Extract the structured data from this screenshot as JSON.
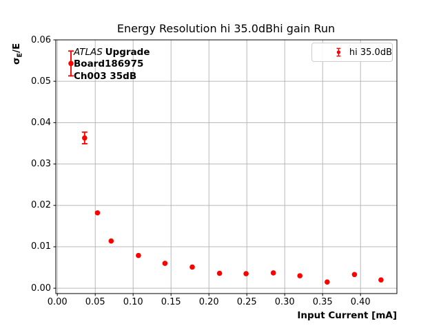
{
  "title": "Energy Resolution hi 35.0dBhi gain Run",
  "axes": {
    "xlabel": "Input Current [mA]",
    "ylabel_sigma": "σ",
    "ylabel_sub": "E",
    "ylabel_rest": "/E",
    "x_tick_labels": [
      "0.00",
      "0.05",
      "0.10",
      "0.15",
      "0.20",
      "0.25",
      "0.30",
      "0.35",
      "0.40"
    ],
    "y_tick_labels": [
      "0.00",
      "0.01",
      "0.02",
      "0.03",
      "0.04",
      "0.05",
      "0.06"
    ]
  },
  "annotation": {
    "line1_italic": "ATLAS",
    "line1_bold": "Upgrade",
    "line2": "Board186975",
    "line3": "Ch003 35dB"
  },
  "legend": {
    "label": "hi 35.0dB",
    "marker_icon": "red-errorbar-icon",
    "position": "upper right"
  },
  "colors": {
    "series": "#ff0000",
    "grid": "#b0b0b0",
    "spine": "#000000",
    "legend_border": "#cdcdcd",
    "background": "#ffffff",
    "text": "#000000"
  },
  "chart_data": {
    "type": "scatter",
    "subtype": "errorbar",
    "title": "Energy Resolution hi 35.0dBhi gain Run",
    "xlabel": "Input Current [mA]",
    "ylabel": "σ_E/E",
    "xlim": [
      -0.002,
      0.448
    ],
    "ylim": [
      -0.0013,
      0.06
    ],
    "x_ticks": [
      0.0,
      0.05,
      0.1,
      0.15,
      0.2,
      0.25,
      0.3,
      0.35,
      0.4
    ],
    "y_ticks": [
      0.0,
      0.01,
      0.02,
      0.03,
      0.04,
      0.05,
      0.06
    ],
    "grid": true,
    "legend_position": "upper right",
    "series": [
      {
        "name": "hi 35.0dB",
        "color": "#ff0000",
        "marker": "circle",
        "x": [
          0.018,
          0.036,
          0.053,
          0.071,
          0.107,
          0.142,
          0.178,
          0.214,
          0.249,
          0.285,
          0.32,
          0.356,
          0.392,
          0.427
        ],
        "y": [
          0.0543,
          0.0363,
          0.0182,
          0.0114,
          0.0079,
          0.006,
          0.0051,
          0.0036,
          0.0035,
          0.0037,
          0.003,
          0.0015,
          0.0033,
          0.002
        ],
        "yerr": [
          0.003,
          0.0014,
          0,
          0,
          0,
          0,
          0,
          0,
          0,
          0,
          0,
          0,
          0,
          0
        ]
      }
    ]
  }
}
